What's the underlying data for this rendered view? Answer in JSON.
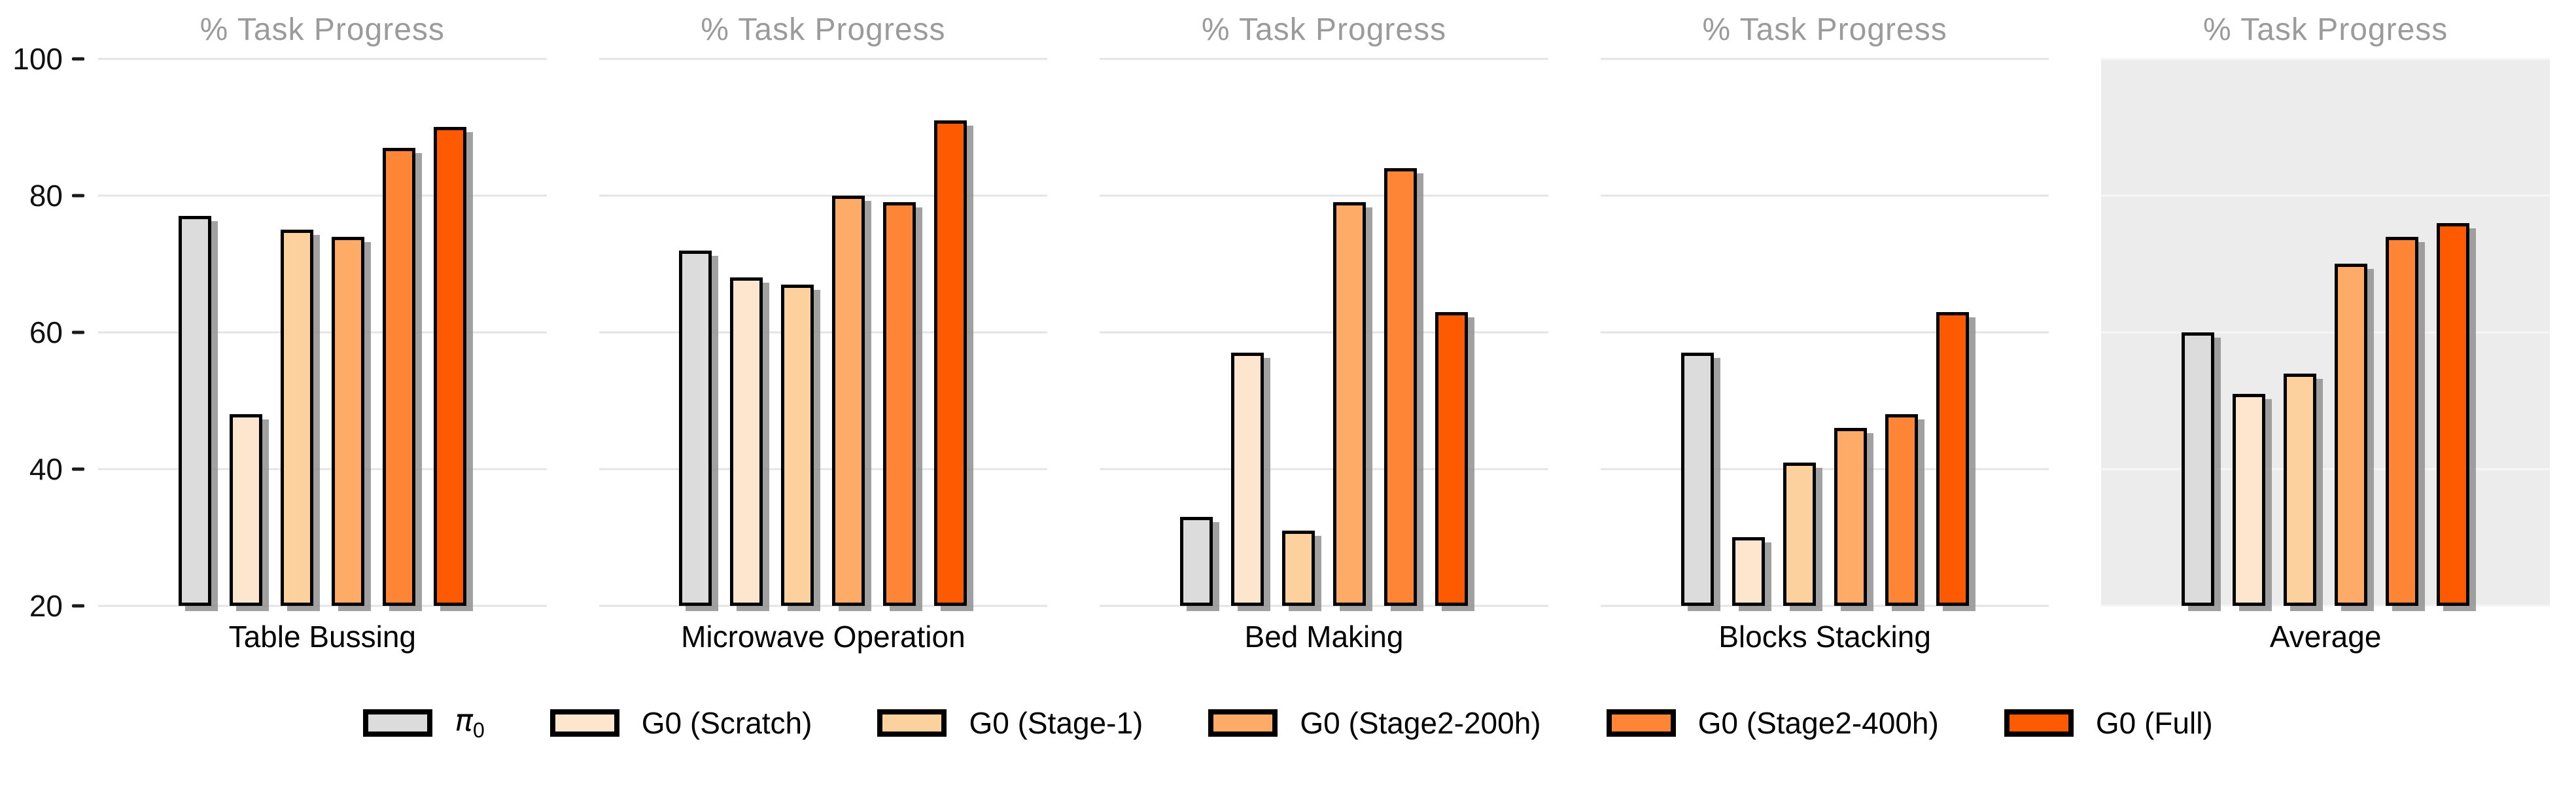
{
  "chart_data": {
    "type": "bar",
    "panel_title": "% Task Progress",
    "categories": [
      "Table Bussing",
      "Microwave Operation",
      "Bed Making",
      "Blocks Stacking",
      "Average"
    ],
    "highlighted_category": "Average",
    "ylim": [
      20,
      100
    ],
    "yticks": [
      20,
      40,
      60,
      80,
      100
    ],
    "grid": true,
    "legend_position": "bottom",
    "series": [
      {
        "name": "pi0",
        "label": "π0",
        "label_base": "π",
        "label_sub": "0",
        "color": "#dcdcdc",
        "values": [
          77,
          72,
          33,
          57,
          60
        ]
      },
      {
        "name": "g0-scratch",
        "label": "G0 (Scratch)",
        "color": "#fde5ce",
        "values": [
          48,
          68,
          57,
          30,
          51
        ]
      },
      {
        "name": "g0-stage-1",
        "label": "G0 (Stage-1)",
        "color": "#fdd19e",
        "values": [
          75,
          67,
          31,
          41,
          54
        ]
      },
      {
        "name": "g0-stage2-200h",
        "label": "G0 (Stage2-200h)",
        "color": "#fdab66",
        "values": [
          74,
          80,
          79,
          46,
          70
        ]
      },
      {
        "name": "g0-stage2-400h",
        "label": "G0 (Stage2-400h)",
        "color": "#fd8535",
        "values": [
          87,
          79,
          84,
          48,
          74
        ]
      },
      {
        "name": "g0-full",
        "label": "G0 (Full)",
        "color": "#fd5a02",
        "values": [
          90,
          91,
          63,
          63,
          76
        ]
      }
    ],
    "colors": {
      "grid": "#e4e4e4",
      "title": "#9b9b9b",
      "bar_edge": "#000000",
      "bar_shadow": "#919191",
      "highlight_panel_bg": "#ececec",
      "tick_text": "#111111"
    }
  }
}
